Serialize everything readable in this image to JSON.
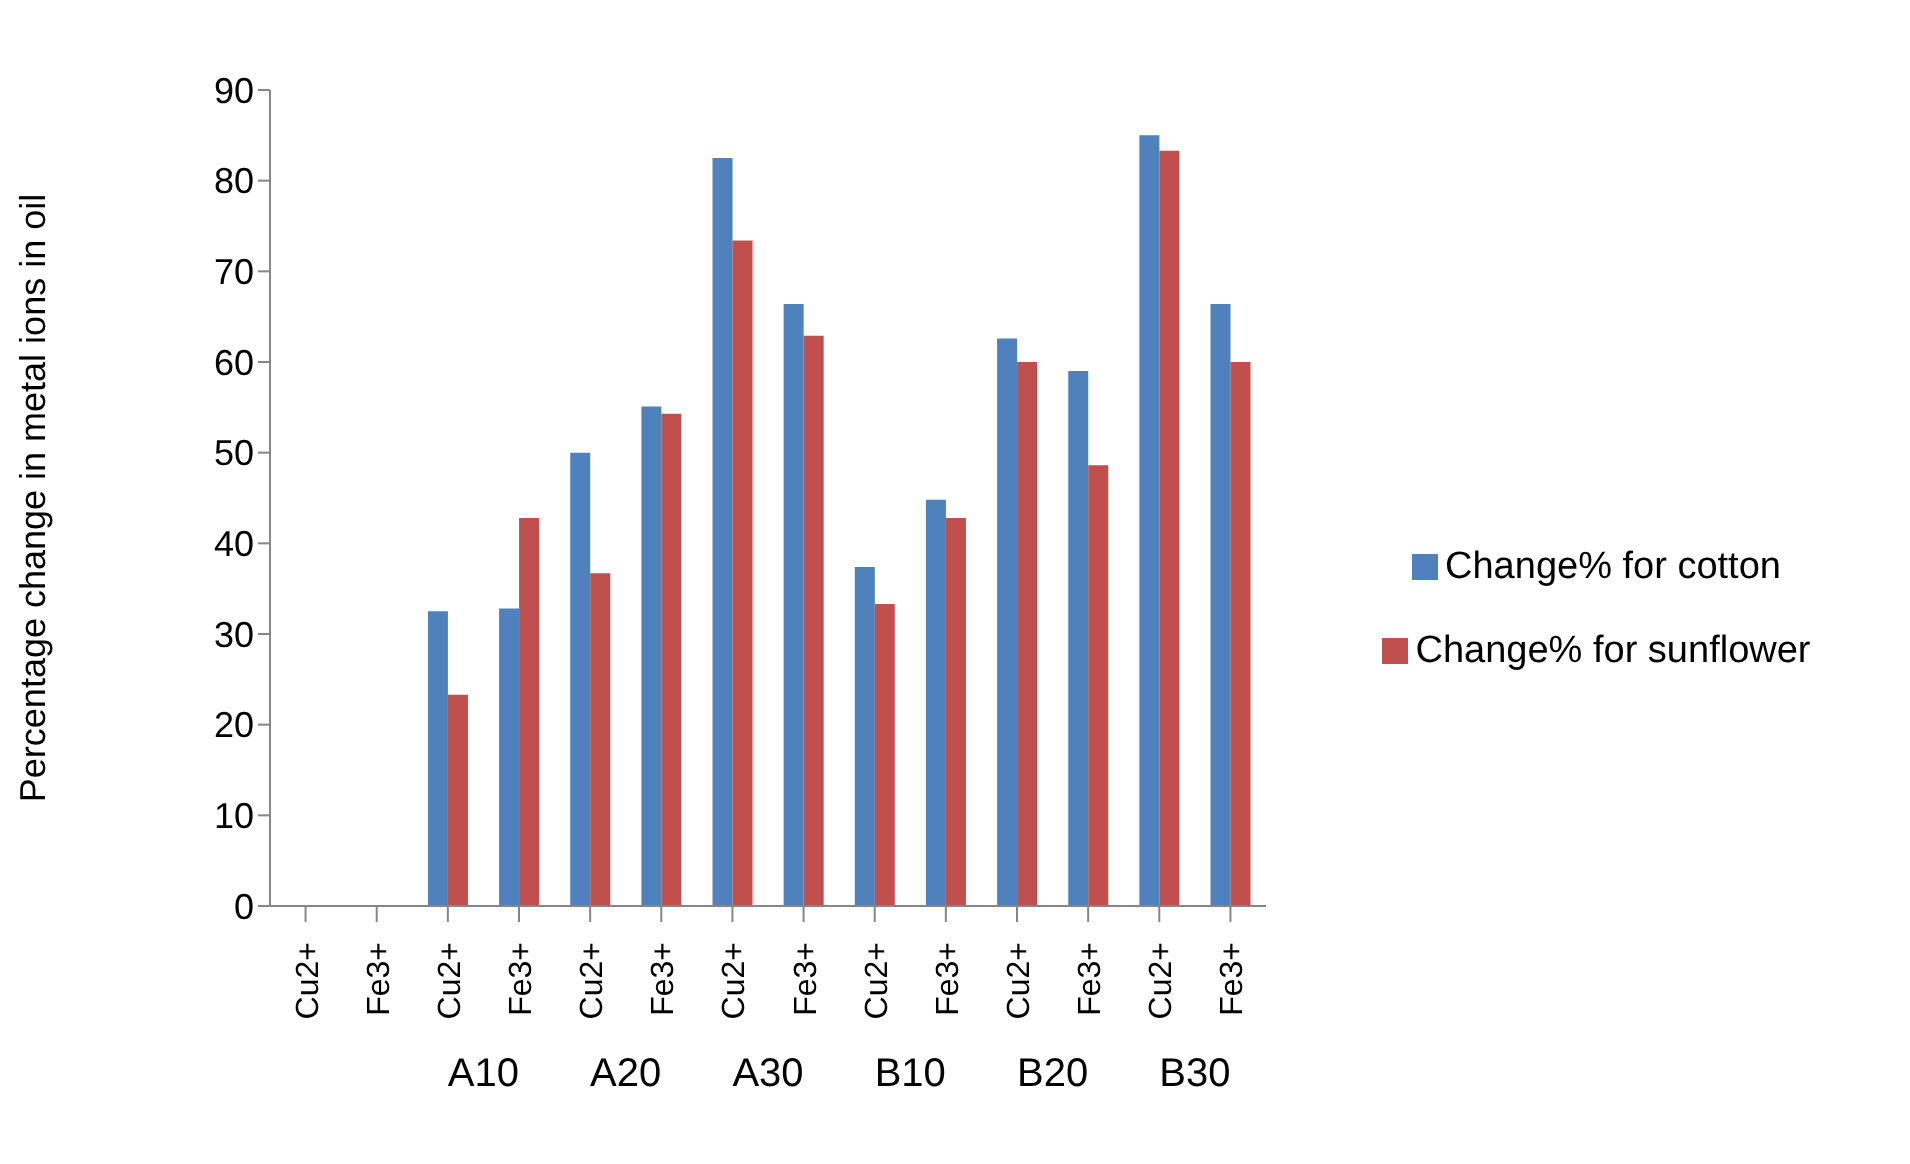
{
  "chart_data": {
    "type": "bar",
    "ylabel": "Percentage change in metal ions in oil",
    "categories": [
      "Cu2+",
      "Fe3+",
      "Cu2+",
      "Fe3+",
      "Cu2+",
      "Fe3+",
      "Cu2+",
      "Fe3+",
      "Cu2+",
      "Fe3+",
      "Cu2+",
      "Fe3+",
      "Cu2+",
      "Fe3+"
    ],
    "series": [
      {
        "name": "Change% for cotton",
        "color": "#4f81bd",
        "values": [
          0,
          0,
          32.5,
          32.8,
          50,
          55.1,
          82.5,
          66.4,
          37.4,
          44.8,
          62.6,
          59,
          85,
          66.4
        ]
      },
      {
        "name": "Change% for sunflower",
        "color": "#c0504d",
        "values": [
          0,
          0,
          23.3,
          42.8,
          36.7,
          54.3,
          73.4,
          62.9,
          33.3,
          42.8,
          60,
          48.6,
          83.3,
          60
        ]
      }
    ],
    "ylim": [
      0,
      90
    ],
    "yticks": [
      0,
      10,
      20,
      30,
      40,
      50,
      60,
      70,
      80,
      90
    ],
    "grid": false,
    "legend": "right",
    "annotations": [
      "A10",
      "A20",
      "A30",
      "B10",
      "B20",
      "B30"
    ]
  }
}
